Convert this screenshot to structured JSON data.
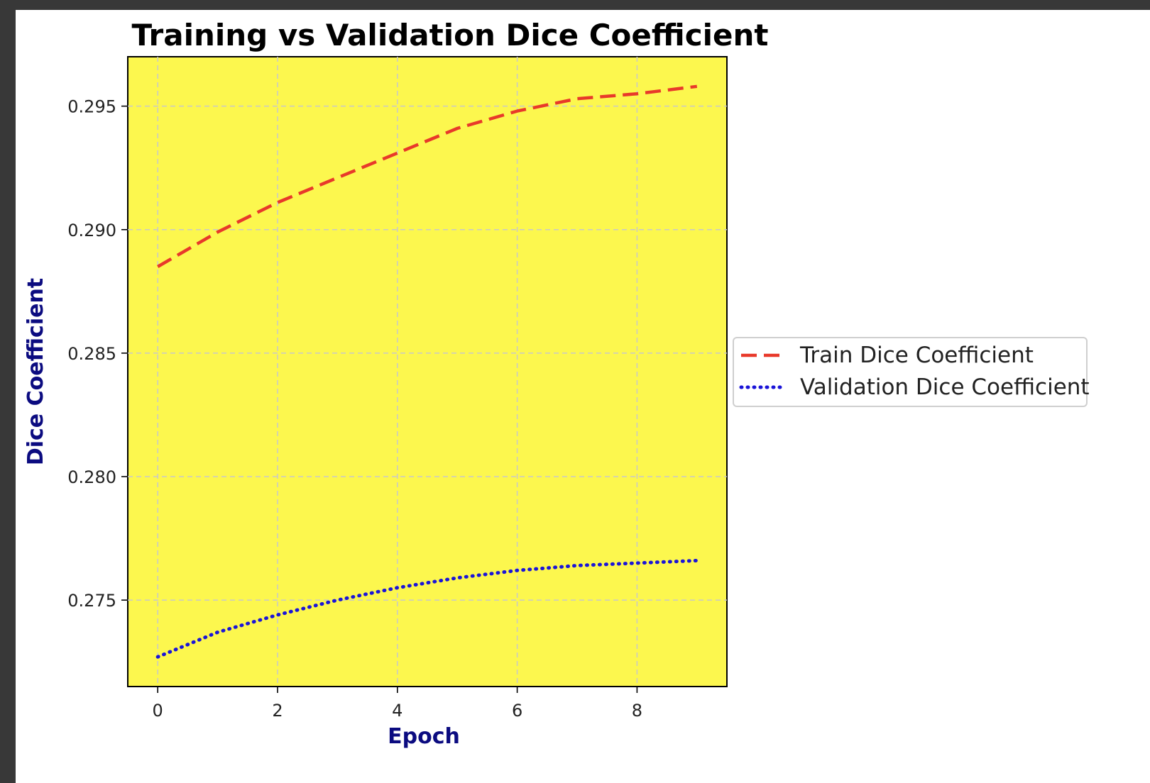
{
  "chart_data": {
    "type": "line",
    "title": "Training vs Validation Dice Coefficient",
    "xlabel": "Epoch",
    "ylabel": "Dice Coefficient",
    "x": [
      0,
      1,
      2,
      3,
      4,
      5,
      6,
      7,
      8,
      9
    ],
    "xlim": [
      -0.5,
      9.5
    ],
    "ylim": [
      0.2715,
      0.297
    ],
    "xticks": [
      0,
      2,
      4,
      6,
      8
    ],
    "yticks": [
      0.275,
      0.28,
      0.285,
      0.29,
      0.295
    ],
    "ytick_labels": [
      "0.275",
      "0.280",
      "0.285",
      "0.290",
      "0.295"
    ],
    "grid": true,
    "legend_placement": "outside-right",
    "plot_background": "#fcf74e",
    "axis_label_color": "#0b0b80",
    "series": [
      {
        "name": "Train Dice Coefficient",
        "values": [
          0.2885,
          0.2899,
          0.2911,
          0.2921,
          0.2931,
          0.2941,
          0.2948,
          0.2953,
          0.2955,
          0.2958
        ],
        "color": "#e8392a",
        "style": "dashed"
      },
      {
        "name": "Validation Dice Coefficient",
        "values": [
          0.2727,
          0.2737,
          0.2744,
          0.275,
          0.2755,
          0.2759,
          0.2762,
          0.2764,
          0.2765,
          0.2766
        ],
        "color": "#1a14d8",
        "style": "dotted"
      }
    ]
  }
}
